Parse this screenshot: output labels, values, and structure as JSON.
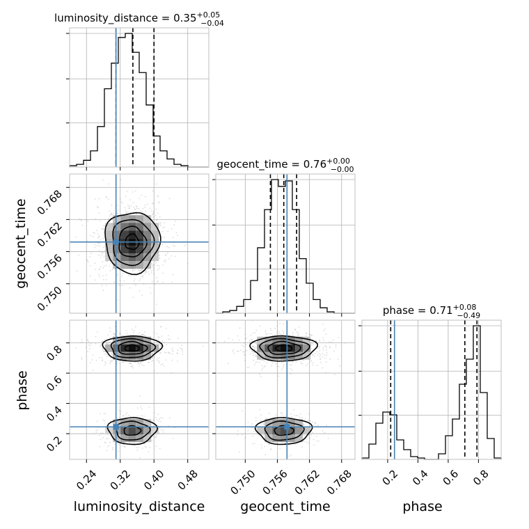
{
  "chart_data": {
    "type": "corner",
    "parameters": [
      "luminosity_distance",
      "geocent_time",
      "phase"
    ],
    "titles": [
      {
        "text": "luminosity_distance = 0.35",
        "sup": "+0.05",
        "sub": "−0.04"
      },
      {
        "text": "geocent_time = 0.76",
        "sup": "+0.00",
        "sub": "−0.00"
      },
      {
        "text": "phase = 0.71",
        "sup": "+0.08",
        "sub": "−0.49"
      }
    ],
    "axis_labels": {
      "luminosity_distance": "luminosity_distance",
      "geocent_time": "geocent_time",
      "phase": "phase"
    },
    "ranges": {
      "luminosity_distance": [
        0.2,
        0.53
      ],
      "geocent_time": [
        0.7445,
        0.7705
      ],
      "phase": [
        0.03,
        0.95
      ]
    },
    "ticks": {
      "luminosity_distance": {
        "values": [
          0.24,
          0.32,
          0.4,
          0.48
        ],
        "labels": [
          "0.24",
          "0.32",
          "0.40",
          "0.48"
        ]
      },
      "geocent_time": {
        "values": [
          0.75,
          0.756,
          0.762,
          0.768
        ],
        "labels": [
          "0.750",
          "0.756",
          "0.762",
          "0.768"
        ]
      },
      "phase": {
        "values": [
          0.2,
          0.4,
          0.6,
          0.8
        ],
        "labels": [
          "0.2",
          "0.4",
          "0.6",
          "0.8"
        ]
      }
    },
    "truth": {
      "luminosity_distance": 0.31,
      "geocent_time": 0.7578,
      "phase": 0.245
    },
    "quantiles": {
      "luminosity_distance": [
        0.31,
        0.35,
        0.4
      ],
      "geocent_time": [
        0.7547,
        0.7572,
        0.7596
      ],
      "phase": [
        0.22,
        0.71,
        0.79
      ]
    },
    "histograms": {
      "luminosity_distance": {
        "edges": [
          0.2,
          0.2165,
          0.233,
          0.2495,
          0.266,
          0.2825,
          0.299,
          0.3155,
          0.332,
          0.3485,
          0.365,
          0.3815,
          0.398,
          0.4145,
          0.431,
          0.4475,
          0.464,
          0.4805,
          0.497,
          0.5135,
          0.53
        ],
        "counts": [
          1,
          2,
          5,
          12,
          30,
          58,
          77,
          96,
          99,
          85,
          70,
          46,
          23,
          12,
          6,
          2,
          1,
          0,
          0,
          0
        ]
      },
      "geocent_time": {
        "edges": [
          0.7445,
          0.7458,
          0.7471,
          0.7484,
          0.7497,
          0.751,
          0.7523,
          0.7536,
          0.7549,
          0.7562,
          0.7575,
          0.7588,
          0.7601,
          0.7614,
          0.7627,
          0.764,
          0.7653,
          0.7666,
          0.7679,
          0.7692,
          0.7705
        ],
        "counts": [
          0,
          1,
          2,
          5,
          10,
          24,
          48,
          76,
          98,
          93,
          97,
          76,
          40,
          22,
          10,
          4,
          1,
          0,
          0,
          0
        ]
      },
      "phase": {
        "edges": [
          0.03,
          0.076,
          0.122,
          0.168,
          0.214,
          0.26,
          0.306,
          0.352,
          0.398,
          0.444,
          0.49,
          0.536,
          0.582,
          0.628,
          0.674,
          0.72,
          0.766,
          0.812,
          0.858,
          0.904,
          0.95
        ],
        "counts": [
          1,
          11,
          26,
          34,
          32,
          14,
          7,
          2,
          1,
          0,
          0,
          4,
          17,
          29,
          54,
          72,
          96,
          48,
          15,
          1
        ]
      }
    },
    "density_modes": [
      {
        "x": "luminosity_distance",
        "y": "geocent_time",
        "centers": [
          {
            "x": 0.348,
            "y": 0.7578,
            "sx": 0.034,
            "sy": 0.0031,
            "w": 1
          }
        ]
      },
      {
        "x": "luminosity_distance",
        "y": "phase",
        "centers": [
          {
            "x": 0.348,
            "y": 0.765,
            "sx": 0.036,
            "sy": 0.045,
            "w": 0.68
          },
          {
            "x": 0.348,
            "y": 0.22,
            "sx": 0.03,
            "sy": 0.048,
            "w": 0.32
          }
        ]
      },
      {
        "x": "geocent_time",
        "y": "phase",
        "centers": [
          {
            "x": 0.7572,
            "y": 0.765,
            "sx": 0.0032,
            "sy": 0.045,
            "w": 0.68
          },
          {
            "x": 0.7572,
            "y": 0.22,
            "sx": 0.0027,
            "sy": 0.048,
            "w": 0.32
          }
        ]
      }
    ],
    "colors": {
      "truth": "#4682b4",
      "hist": "#000000",
      "quantile": "#000000",
      "grid": "#b0b0b0"
    },
    "grid": true
  }
}
